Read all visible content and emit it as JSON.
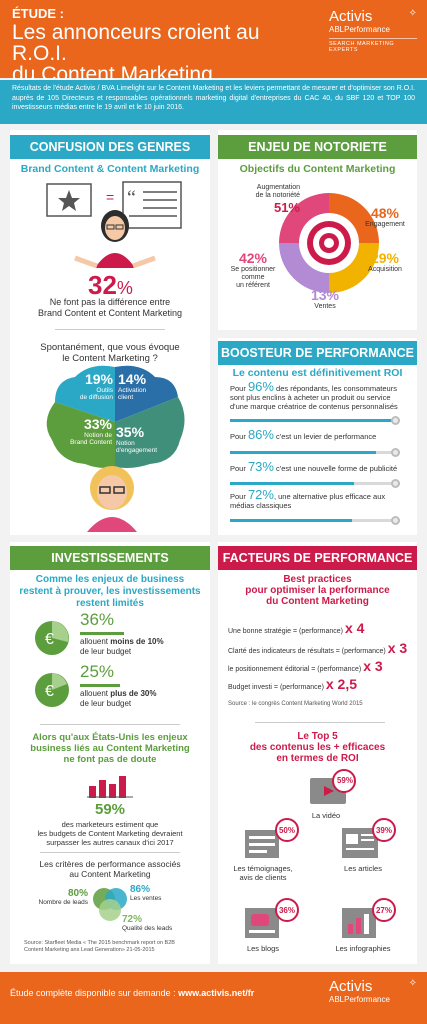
{
  "header": {
    "kicker": "ÉTUDE :",
    "title_line1": "Les annonceurs croient au R.O.I.",
    "title_line2": "du Content Marketing",
    "logo_name": "Activis",
    "logo_sub": "ABLPerformance",
    "logo_tag": "SEARCH MARKETING EXPERTS"
  },
  "intro": "Résultats de l'étude Activis / BVA Limelight sur le Content Marketing et les leviers permettant de mesurer et d'optimiser son R.O.I. auprès de 105 Directeurs et responsables opérationnels marketing digital d'entreprises du CAC 40, du SBF 120 et TOP 100 investisseurs médias entre le 19 avril et le 10 juin 2016.",
  "confusion": {
    "banner": "CONFUSION DES GENRES",
    "subtitle": "Brand Content & Content Marketing",
    "pct": "32",
    "pct_sign": "%",
    "text_line1": "Ne font pas la différence entre",
    "text_line2": "Brand Content et Content Marketing",
    "question_line1": "Spontanément, que vous évoque",
    "question_line2": "le Content Marketing ?",
    "cloud": [
      {
        "pct": "19%",
        "label_line1": "Outils",
        "label_line2": "de diffusion"
      },
      {
        "pct": "14%",
        "label_line1": "Activation",
        "label_line2": "client"
      },
      {
        "pct": "33%",
        "label_line1": "Notion de",
        "label_line2": "Brand Content"
      },
      {
        "pct": "35%",
        "label_line1": "Notion",
        "label_line2": "d'engagement"
      }
    ]
  },
  "notoriete": {
    "banner": "ENJEU DE NOTORIETE",
    "subtitle": "Objectifs du Content Marketing",
    "items": [
      {
        "pct": "51%",
        "label_line1": "Augmentation",
        "label_line2": "de la notoriété"
      },
      {
        "pct": "48%",
        "label_line1": "Engagement",
        "label_line2": ""
      },
      {
        "pct": "29%",
        "label_line1": "Acquisition",
        "label_line2": ""
      },
      {
        "pct": "13%",
        "label_line1": "Ventes",
        "label_line2": ""
      },
      {
        "pct": "42%",
        "label_line1": "Se positionner",
        "label_line2": "comme",
        "label_line3": "un référent"
      }
    ]
  },
  "boosteur": {
    "banner": "BOOSTEUR DE PERFORMANCE",
    "subtitle": "Le contenu est définitivement ROI",
    "rows": [
      {
        "prefix": "Pour ",
        "pct": "96%",
        "text": " des répondants, les consommateurs sont plus enclins à acheter un produit ou service d'une marque créatrice de contenus personnalisés",
        "value": 96
      },
      {
        "prefix": "Pour ",
        "pct": "86%",
        "text": " c'est un levier de performance",
        "value": 86
      },
      {
        "prefix": "Pour ",
        "pct": "73%",
        "text": " c'est une nouvelle forme de publicité",
        "value": 73
      },
      {
        "prefix": "Pour ",
        "pct": "72%",
        "text": ", une alternative plus efficace aux médias classiques",
        "value": 72
      }
    ]
  },
  "investissements": {
    "banner": "INVESTISSEMENTS",
    "subtitle_line1": "Comme les enjeux de business",
    "subtitle_line2": "restent à prouver, les investissements",
    "subtitle_line3": "restent limités",
    "stat1": {
      "pct": "36%",
      "line1": "allouent ",
      "bold1": "moins de 10%",
      "line2": "de leur budget"
    },
    "stat2": {
      "pct": "25%",
      "line1": "allouent ",
      "bold1": "plus de 30%",
      "line2": "de leur budget"
    },
    "us_line1": "Alors qu'aux États-Unis les enjeux",
    "us_line2": "business liés au Content Marketing",
    "us_line3": "ne font pas de doute",
    "us_pct": "59%",
    "us_text_line1": "des marketeurs estiment que",
    "us_text_line2": "les budgets de Content Marketing devraient",
    "us_text_line3": "surpasser les autres canaux d'ici 2017",
    "criteria_line1": "Les critères de performance associés",
    "criteria_line2": "au Content Marketing",
    "criteria": [
      {
        "pct": "80%",
        "label": "Nombre de leads"
      },
      {
        "pct": "86%",
        "label": "Les ventes"
      },
      {
        "pct": "72%",
        "label": "Qualité des leads"
      }
    ],
    "source_line1": "Source: Starfleet Media « The 2015 benchmark report on B2B",
    "source_line2": "Content Marketing ans Lead Generation» 21-05-2015"
  },
  "facteurs": {
    "banner": "FACTEURS DE PERFORMANCE",
    "subtitle_line1": "Best practices",
    "subtitle_line2": "pour optimiser la performance",
    "subtitle_line3": "du Content Marketing",
    "rows": [
      {
        "label": "Une bonne stratégie = (performance)",
        "mult": "x 4"
      },
      {
        "label": "Clarté des indicateurs de résultats = (performance)",
        "mult": "x 3"
      },
      {
        "label": "le positionnement éditorial = (performance)",
        "mult": "x 3"
      },
      {
        "label": "Budget investi  = (performance)",
        "mult": "x 2,5"
      }
    ],
    "source": "Source : le congrès Content Marketing World 2015",
    "top5_line1": "Le Top 5",
    "top5_line2": "des contenus les + efficaces",
    "top5_line3": "en termes de ROI",
    "top5": [
      {
        "pct": "59%",
        "label_line1": "La vidéo",
        "label_line2": ""
      },
      {
        "pct": "50%",
        "label_line1": "Les témoignages,",
        "label_line2": "avis de clients"
      },
      {
        "pct": "39%",
        "label_line1": "Les articles",
        "label_line2": ""
      },
      {
        "pct": "36%",
        "label_line1": "Les blogs",
        "label_line2": ""
      },
      {
        "pct": "27%",
        "label_line1": "Les infographies",
        "label_line2": ""
      }
    ]
  },
  "footer": {
    "study_prefix": "Étude complète disponible sur demande : ",
    "study_url": "www.activis.net/fr",
    "logo_name": "Activis",
    "logo_sub": "ABLPerformance"
  }
}
